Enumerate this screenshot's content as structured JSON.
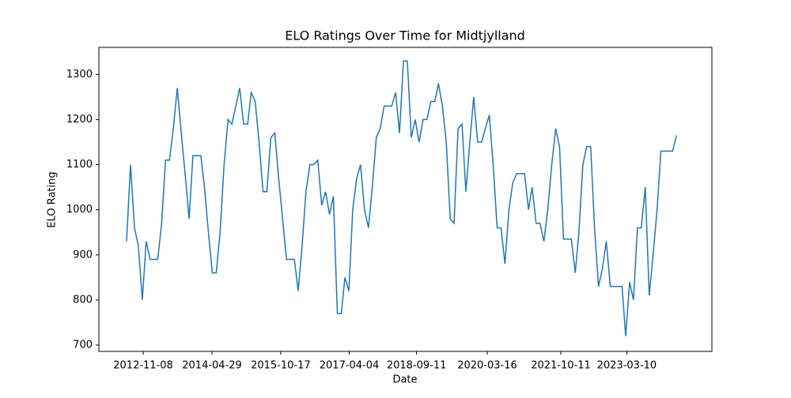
{
  "chart_data": {
    "type": "line",
    "title": "ELO Ratings Over Time for Midtjylland",
    "x_label": "Date",
    "y_label": "ELO Rating",
    "x": [
      "2012-07-01",
      "2012-08-01",
      "2012-09-01",
      "2012-10-01",
      "2012-11-01",
      "2012-12-01",
      "2013-01-01",
      "2013-02-01",
      "2013-03-01",
      "2013-04-01",
      "2013-05-01",
      "2013-06-01",
      "2013-07-01",
      "2013-08-01",
      "2013-09-01",
      "2013-10-01",
      "2013-11-01",
      "2013-12-01",
      "2014-01-01",
      "2014-02-01",
      "2014-03-01",
      "2014-04-01",
      "2014-05-01",
      "2014-06-01",
      "2014-07-01",
      "2014-08-01",
      "2014-09-01",
      "2014-10-01",
      "2014-11-01",
      "2014-12-01",
      "2015-01-01",
      "2015-02-01",
      "2015-03-01",
      "2015-04-01",
      "2015-05-01",
      "2015-06-01",
      "2015-07-01",
      "2015-08-01",
      "2015-09-01",
      "2015-10-01",
      "2015-11-01",
      "2015-12-01",
      "2016-01-01",
      "2016-02-01",
      "2016-03-01",
      "2016-04-01",
      "2016-05-01",
      "2016-06-01",
      "2016-07-01",
      "2016-08-01",
      "2016-09-01",
      "2016-10-01",
      "2016-11-01",
      "2016-12-01",
      "2017-01-01",
      "2017-02-01",
      "2017-03-01",
      "2017-04-01",
      "2017-05-01",
      "2017-06-01",
      "2017-07-01",
      "2017-08-01",
      "2017-09-01",
      "2017-10-01",
      "2017-11-01",
      "2017-12-01",
      "2018-01-01",
      "2018-02-01",
      "2018-03-01",
      "2018-04-01",
      "2018-05-01",
      "2018-06-01",
      "2018-07-01",
      "2018-08-01",
      "2018-09-01",
      "2018-10-01",
      "2018-11-01",
      "2018-12-01",
      "2019-01-01",
      "2019-02-01",
      "2019-03-01",
      "2019-04-01",
      "2019-05-01",
      "2019-06-01",
      "2019-07-01",
      "2019-08-01",
      "2019-09-01",
      "2019-10-01",
      "2019-11-01",
      "2019-12-01",
      "2020-01-01",
      "2020-02-01",
      "2020-03-01",
      "2020-04-01",
      "2020-05-01",
      "2020-06-01",
      "2020-07-01",
      "2020-08-01",
      "2020-09-01",
      "2020-10-01",
      "2020-11-01",
      "2020-12-01",
      "2021-01-01",
      "2021-02-01",
      "2021-03-01",
      "2021-04-01",
      "2021-05-01",
      "2021-06-01",
      "2021-07-01",
      "2021-08-01",
      "2021-09-01",
      "2021-10-01",
      "2021-11-01",
      "2021-12-01",
      "2022-01-01",
      "2022-02-01",
      "2022-03-01",
      "2022-04-01",
      "2022-05-01",
      "2022-06-01",
      "2022-07-01",
      "2022-08-01",
      "2022-09-01",
      "2022-10-01",
      "2022-11-01",
      "2022-12-01",
      "2023-01-01",
      "2023-02-01",
      "2023-03-01",
      "2023-04-01",
      "2023-05-01",
      "2023-06-01",
      "2023-07-01",
      "2023-08-01",
      "2023-09-01",
      "2023-10-01",
      "2023-11-01",
      "2023-12-01",
      "2024-01-01",
      "2024-02-01",
      "2024-03-01",
      "2024-04-01"
    ],
    "series": [
      {
        "name": "Midtjylland",
        "color": "#1f77b4",
        "values": [
          930,
          1100,
          960,
          920,
          800,
          930,
          890,
          890,
          890,
          970,
          1110,
          1110,
          1180,
          1270,
          1170,
          1080,
          980,
          1120,
          1120,
          1120,
          1050,
          950,
          860,
          860,
          950,
          1100,
          1200,
          1190,
          1230,
          1270,
          1190,
          1190,
          1260,
          1240,
          1150,
          1040,
          1040,
          1160,
          1170,
          1070,
          980,
          890,
          890,
          890,
          820,
          920,
          1040,
          1100,
          1100,
          1110,
          1010,
          1040,
          990,
          1030,
          770,
          770,
          850,
          820,
          1000,
          1070,
          1100,
          1000,
          960,
          1050,
          1160,
          1180,
          1230,
          1230,
          1230,
          1260,
          1170,
          1330,
          1330,
          1160,
          1200,
          1150,
          1200,
          1200,
          1240,
          1240,
          1280,
          1230,
          1150,
          980,
          970,
          1180,
          1190,
          1040,
          1150,
          1250,
          1150,
          1150,
          1180,
          1210,
          1100,
          960,
          960,
          880,
          1000,
          1060,
          1080,
          1080,
          1080,
          1000,
          1050,
          970,
          970,
          930,
          1000,
          1100,
          1180,
          1140,
          935,
          935,
          935,
          860,
          950,
          1100,
          1140,
          1140,
          960,
          830,
          870,
          930,
          830,
          830,
          830,
          830,
          720,
          840,
          800,
          960,
          960,
          1050,
          810,
          900,
          1000,
          1130,
          1130,
          1130,
          1130,
          1165
        ]
      }
    ],
    "xlim": [
      "2011-11-28",
      "2025-01-02"
    ],
    "xticks": [
      "2012-11-08",
      "2014-04-29",
      "2015-10-17",
      "2017-04-04",
      "2018-09-11",
      "2020-03-16",
      "2021-10-11",
      "2023-03-10"
    ],
    "ylim": [
      686,
      1360
    ],
    "yticks": [
      700,
      800,
      900,
      1000,
      1100,
      1200,
      1300
    ]
  }
}
